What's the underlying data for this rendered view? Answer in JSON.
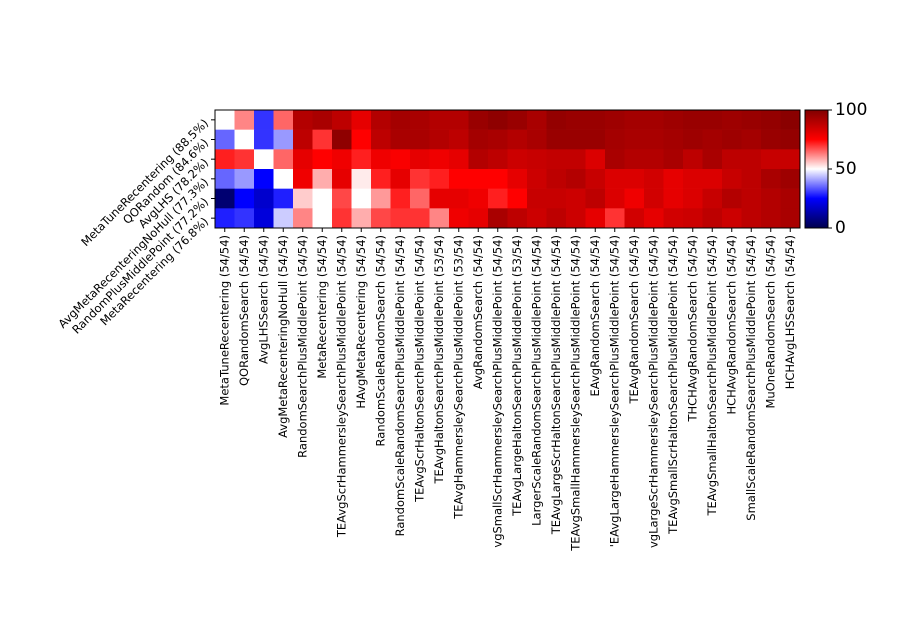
{
  "chart_data": {
    "type": "heatmap",
    "rows": [
      "MetaTuneRecentering (88.5%)",
      "QORandom (84.6%)",
      "AvgLHS (78.2%)",
      "AvgMetaRecenteringNoHull (77.3%)",
      "RandomPlusMiddlePoint (77.2%)",
      "MetaRecentering (76.8%)"
    ],
    "columns": [
      "MetaTuneRecentering (54/54)",
      "QORandomSearch (54/54)",
      "AvgLHSSearch (54/54)",
      "AvgMetaRecenteringNoHull (54/54)",
      "RandomSearchPlusMiddlePoint (54/54)",
      "MetaRecentering (54/54)",
      "TEAvgScrHammersleySearchPlusMiddlePoint (54/54)",
      "HAvgMetaRecentering (54/54)",
      "RandomScaleRandomSearch (54/54)",
      "RandomScaleRandomSearchPlusMiddlePoint (54/54)",
      "TEAvgScrHaltonSearchPlusMiddlePoint (54/54)",
      "TEAvgHaltonSearchPlusMiddlePoint (53/54)",
      "TEAvgHammersleySearchPlusMiddlePoint (53/54)",
      "AvgRandomSearch (54/54)",
      "vgSmallScrHammersleySearchPlusMiddlePoint (54/54)",
      "TEAvgLargeHaltonSearchPlusMiddlePoint (53/54)",
      "LargerScaleRandomSearchPlusMiddlePoint (54/54)",
      "TEAvgLargeScrHaltonSearchPlusMiddlePoint (54/54)",
      "TEAvgSmallHammersleySearchPlusMiddlePoint (54/54)",
      "EAvgRandomSearch (54/54)",
      "'EAvgLargeHammersleySearchPlusMiddlePoint (54/54)",
      "TEAvgRandomSearch (54/54)",
      "vgLargeScrHammersleySearchPlusMiddlePoint (54/54)",
      "TEAvgSmallScrHaltonSearchPlusMiddlePoint (54/54)",
      "THCHAvgRandomSearch (54/54)",
      "TEAvgSmallHaltonSearchPlusMiddlePoint (54/54)",
      "HCHAvgRandomSearch (54/54)",
      "SmallScaleRandomSearchPlusMiddlePoint (54/54)",
      "MuOneRandomSearch (54/54)",
      "HCHAvgLHSSearch (54/54)"
    ],
    "values": [
      [
        50,
        62,
        30,
        65,
        90,
        92,
        88,
        80,
        90,
        93,
        92,
        90,
        90,
        95,
        97,
        95,
        92,
        96,
        95,
        95,
        94,
        93,
        93,
        94,
        95,
        95,
        94,
        95,
        96,
        98
      ],
      [
        35,
        50,
        30,
        40,
        88,
        70,
        97,
        75,
        88,
        92,
        92,
        90,
        88,
        93,
        92,
        90,
        92,
        95,
        95,
        95,
        93,
        92,
        92,
        93,
        94,
        93,
        94,
        93,
        95,
        96
      ],
      [
        72,
        70,
        50,
        65,
        80,
        75,
        78,
        72,
        78,
        76,
        80,
        78,
        80,
        90,
        88,
        85,
        86,
        87,
        87,
        82,
        92,
        90,
        90,
        92,
        88,
        92,
        88,
        88,
        86,
        86
      ],
      [
        35,
        40,
        25,
        50,
        78,
        58,
        80,
        52,
        72,
        80,
        70,
        72,
        75,
        75,
        75,
        80,
        85,
        88,
        90,
        86,
        82,
        82,
        84,
        80,
        82,
        82,
        86,
        88,
        92,
        94
      ],
      [
        5,
        25,
        18,
        28,
        55,
        50,
        68,
        50,
        60,
        72,
        65,
        80,
        80,
        78,
        72,
        75,
        86,
        86,
        85,
        88,
        82,
        78,
        84,
        80,
        82,
        86,
        90,
        88,
        90,
        92
      ],
      [
        28,
        30,
        20,
        45,
        62,
        50,
        70,
        58,
        68,
        70,
        70,
        62,
        78,
        80,
        92,
        88,
        85,
        88,
        85,
        80,
        70,
        84,
        80,
        84,
        85,
        88,
        85,
        88,
        90,
        92
      ]
    ],
    "colormap": "seismic",
    "clim": [
      0,
      100
    ],
    "colorbar_ticks": [
      0,
      50,
      100
    ]
  }
}
